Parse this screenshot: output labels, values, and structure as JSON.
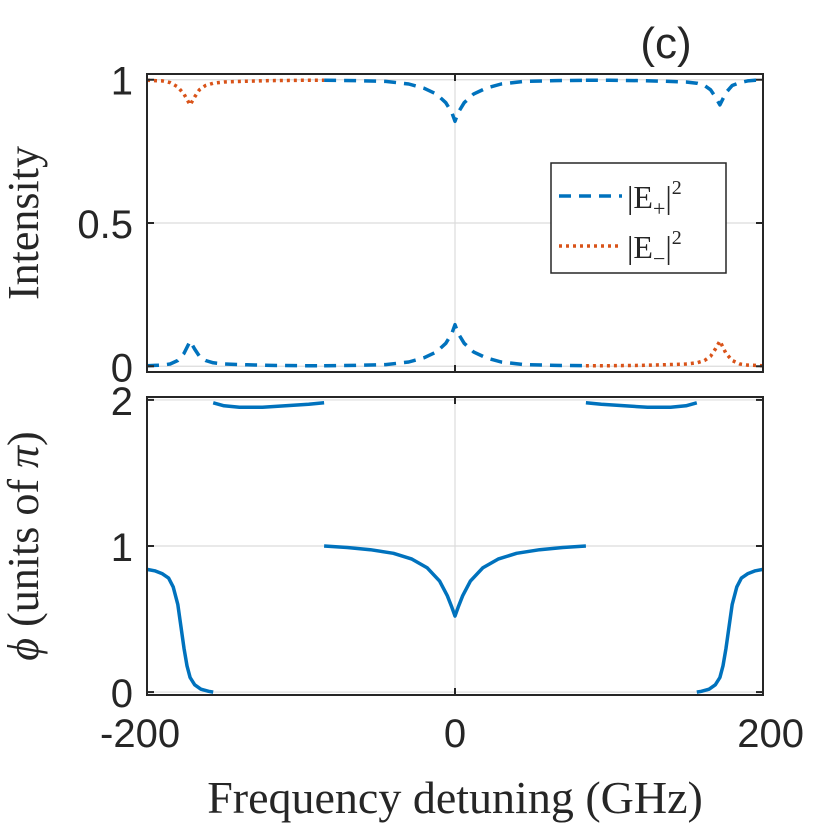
{
  "panel_label": "(c)",
  "colors": {
    "plus": "#0072BD",
    "minus": "#D95319",
    "axis": "#262626",
    "grid": "#dcdcdc"
  },
  "chart_data": [
    {
      "type": "line",
      "name": "intensity",
      "ylabel": "Intensity",
      "xlim": [
        -200,
        200
      ],
      "ylim": [
        -0.02,
        1.02
      ],
      "yticks": [
        0,
        0.5,
        1
      ],
      "ytick_labels": [
        "0",
        "0.5",
        "1"
      ],
      "xticks": [
        -200,
        0,
        200
      ],
      "grid": true,
      "legend_position": "right",
      "series": [
        {
          "name": "|E+|^2",
          "legend_main": "|E",
          "legend_sub": "+",
          "legend_sup": "2",
          "color": "#0072BD",
          "style": "dashed",
          "segments": [
            [
              [
                -200,
                0.002
              ],
              [
                -195,
                0.003
              ],
              [
                -190,
                0.004
              ],
              [
                -185,
                0.008
              ],
              [
                -180,
                0.02
              ],
              [
                -176,
                0.045
              ],
              [
                -172,
                0.088
              ],
              [
                -169,
                0.06
              ],
              [
                -166,
                0.035
              ],
              [
                -162,
                0.02
              ],
              [
                -157,
                0.012
              ],
              [
                -150,
                0.008
              ],
              [
                -135,
                0.005
              ],
              [
                -120,
                0.003
              ],
              [
                -100,
                0.002
              ],
              [
                -85,
                0.002
              ]
            ],
            [
              [
                -85,
                0.998
              ],
              [
                -65,
                0.997
              ],
              [
                -45,
                0.994
              ],
              [
                -30,
                0.985
              ],
              [
                -20,
                0.97
              ],
              [
                -12,
                0.95
              ],
              [
                -6,
                0.92
              ],
              [
                -2,
                0.885
              ],
              [
                0,
                0.855
              ],
              [
                2,
                0.885
              ],
              [
                6,
                0.92
              ],
              [
                12,
                0.95
              ],
              [
                20,
                0.97
              ],
              [
                30,
                0.985
              ],
              [
                45,
                0.994
              ],
              [
                65,
                0.997
              ],
              [
                85,
                0.998
              ]
            ],
            [
              [
                -85,
                0.002
              ],
              [
                -65,
                0.003
              ],
              [
                -45,
                0.006
              ],
              [
                -30,
                0.015
              ],
              [
                -20,
                0.03
              ],
              [
                -12,
                0.05
              ],
              [
                -6,
                0.08
              ],
              [
                -2,
                0.115
              ],
              [
                0,
                0.145
              ],
              [
                2,
                0.115
              ],
              [
                6,
                0.08
              ],
              [
                12,
                0.05
              ],
              [
                20,
                0.03
              ],
              [
                30,
                0.015
              ],
              [
                45,
                0.006
              ],
              [
                65,
                0.003
              ],
              [
                85,
                0.002
              ]
            ],
            [
              [
                85,
                0.998
              ],
              [
                100,
                0.998
              ],
              [
                120,
                0.997
              ],
              [
                135,
                0.995
              ],
              [
                150,
                0.992
              ],
              [
                157,
                0.988
              ],
              [
                162,
                0.98
              ],
              [
                166,
                0.965
              ],
              [
                169,
                0.94
              ],
              [
                172,
                0.912
              ],
              [
                176,
                0.955
              ],
              [
                180,
                0.98
              ],
              [
                185,
                0.99
              ],
              [
                190,
                0.996
              ],
              [
                195,
                0.998
              ],
              [
                200,
                0.998
              ]
            ]
          ]
        },
        {
          "name": "|E-|^2",
          "legend_main": "|E",
          "legend_sub": "−",
          "legend_sup": "2",
          "color": "#D95319",
          "style": "dotted",
          "segments": [
            [
              [
                -200,
                0.998
              ],
              [
                -195,
                0.997
              ],
              [
                -190,
                0.996
              ],
              [
                -185,
                0.99
              ],
              [
                -180,
                0.975
              ],
              [
                -176,
                0.95
              ],
              [
                -172,
                0.912
              ],
              [
                -169,
                0.94
              ],
              [
                -166,
                0.965
              ],
              [
                -162,
                0.98
              ],
              [
                -157,
                0.988
              ],
              [
                -150,
                0.992
              ],
              [
                -135,
                0.995
              ],
              [
                -120,
                0.997
              ],
              [
                -100,
                0.998
              ],
              [
                -85,
                0.998
              ]
            ],
            [
              [
                85,
                0.002
              ],
              [
                100,
                0.002
              ],
              [
                120,
                0.003
              ],
              [
                135,
                0.005
              ],
              [
                150,
                0.008
              ],
              [
                157,
                0.012
              ],
              [
                162,
                0.02
              ],
              [
                166,
                0.035
              ],
              [
                169,
                0.06
              ],
              [
                172,
                0.088
              ],
              [
                176,
                0.045
              ],
              [
                180,
                0.02
              ],
              [
                185,
                0.008
              ],
              [
                190,
                0.004
              ],
              [
                195,
                0.003
              ],
              [
                200,
                0.002
              ]
            ]
          ]
        }
      ]
    },
    {
      "type": "line",
      "name": "phase",
      "ylabel_symbol": "ϕ",
      "ylabel_text": "(units of ",
      "ylabel_pi": "π",
      "ylabel_close": ")",
      "xlabel": "Frequency detuning (GHz)",
      "xlim": [
        -200,
        200
      ],
      "ylim": [
        -0.02,
        2.02
      ],
      "yticks": [
        0,
        1,
        2
      ],
      "ytick_labels": [
        "0",
        "1",
        "2"
      ],
      "xticks": [
        -200,
        0,
        200
      ],
      "xtick_labels": [
        "-200",
        "0",
        "200"
      ],
      "grid": true,
      "series": [
        {
          "name": "phi",
          "color": "#0072BD",
          "style": "solid",
          "segments": [
            [
              [
                -200,
                0.84
              ],
              [
                -195,
                0.83
              ],
              [
                -190,
                0.81
              ],
              [
                -186,
                0.78
              ],
              [
                -183,
                0.72
              ],
              [
                -180,
                0.6
              ],
              [
                -178,
                0.45
              ],
              [
                -176,
                0.3
              ],
              [
                -174,
                0.18
              ],
              [
                -172,
                0.1
              ],
              [
                -169,
                0.05
              ],
              [
                -165,
                0.02
              ],
              [
                -160,
                0.005
              ],
              [
                -157,
                0.0
              ]
            ],
            [
              [
                -157,
                1.98
              ],
              [
                -150,
                1.96
              ],
              [
                -140,
                1.95
              ],
              [
                -125,
                1.95
              ],
              [
                -110,
                1.96
              ],
              [
                -95,
                1.97
              ],
              [
                -85,
                1.98
              ]
            ],
            [
              [
                -85,
                1.0
              ],
              [
                -70,
                0.99
              ],
              [
                -55,
                0.975
              ],
              [
                -40,
                0.95
              ],
              [
                -28,
                0.91
              ],
              [
                -18,
                0.85
              ],
              [
                -10,
                0.76
              ],
              [
                -5,
                0.66
              ],
              [
                -2,
                0.58
              ],
              [
                0,
                0.52
              ],
              [
                2,
                0.58
              ],
              [
                5,
                0.66
              ],
              [
                10,
                0.76
              ],
              [
                18,
                0.85
              ],
              [
                28,
                0.91
              ],
              [
                40,
                0.95
              ],
              [
                55,
                0.975
              ],
              [
                70,
                0.99
              ],
              [
                85,
                1.0
              ]
            ],
            [
              [
                85,
                1.98
              ],
              [
                95,
                1.97
              ],
              [
                110,
                1.96
              ],
              [
                125,
                1.95
              ],
              [
                140,
                1.95
              ],
              [
                150,
                1.96
              ],
              [
                157,
                1.98
              ]
            ],
            [
              [
                157,
                0.0
              ],
              [
                160,
                0.005
              ],
              [
                165,
                0.02
              ],
              [
                169,
                0.05
              ],
              [
                172,
                0.1
              ],
              [
                174,
                0.18
              ],
              [
                176,
                0.3
              ],
              [
                178,
                0.45
              ],
              [
                180,
                0.6
              ],
              [
                183,
                0.72
              ],
              [
                186,
                0.78
              ],
              [
                190,
                0.81
              ],
              [
                195,
                0.83
              ],
              [
                200,
                0.84
              ]
            ]
          ]
        }
      ]
    }
  ]
}
